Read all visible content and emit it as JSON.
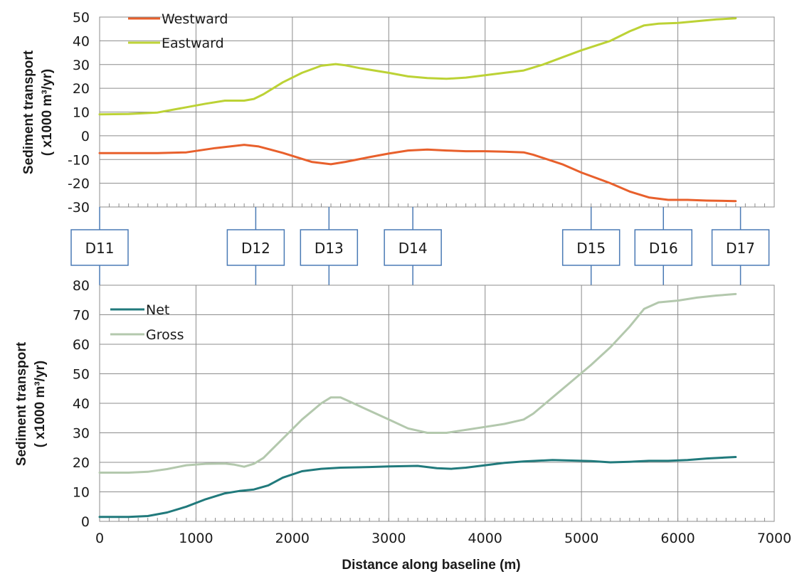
{
  "chart_data": [
    {
      "type": "line",
      "ylabel_lines": [
        "Sediment transport",
        "( x1000  m³/yr)"
      ],
      "xlim": [
        0,
        7000
      ],
      "ylim": [
        -30,
        50
      ],
      "yticks": [
        -30,
        -20,
        -10,
        0,
        10,
        20,
        30,
        40,
        50
      ],
      "xticks": [
        0,
        1000,
        2000,
        3000,
        4000,
        5000,
        6000,
        7000
      ],
      "grid": true,
      "legend": "top-left",
      "series": [
        {
          "name": "Westward",
          "color": "#e8602c",
          "points": [
            [
              0,
              -7.3
            ],
            [
              300,
              -7.3
            ],
            [
              600,
              -7.3
            ],
            [
              900,
              -7
            ],
            [
              1200,
              -5.2
            ],
            [
              1500,
              -3.8
            ],
            [
              1650,
              -4.5
            ],
            [
              1900,
              -7.2
            ],
            [
              2200,
              -11
            ],
            [
              2400,
              -12
            ],
            [
              2550,
              -11
            ],
            [
              2800,
              -9
            ],
            [
              3000,
              -7.5
            ],
            [
              3200,
              -6.2
            ],
            [
              3400,
              -5.8
            ],
            [
              3600,
              -6.2
            ],
            [
              3800,
              -6.5
            ],
            [
              4000,
              -6.5
            ],
            [
              4200,
              -6.7
            ],
            [
              4400,
              -7
            ],
            [
              4500,
              -8
            ],
            [
              4800,
              -12
            ],
            [
              5000,
              -15.5
            ],
            [
              5300,
              -20
            ],
            [
              5500,
              -23.5
            ],
            [
              5700,
              -26
            ],
            [
              5900,
              -27
            ],
            [
              6100,
              -27
            ],
            [
              6300,
              -27.3
            ],
            [
              6600,
              -27.5
            ]
          ]
        },
        {
          "name": "Eastward",
          "color": "#bcd235",
          "points": [
            [
              0,
              9
            ],
            [
              300,
              9.2
            ],
            [
              600,
              9.8
            ],
            [
              900,
              12
            ],
            [
              1100,
              13.5
            ],
            [
              1300,
              14.8
            ],
            [
              1500,
              14.8
            ],
            [
              1600,
              15.5
            ],
            [
              1700,
              17.5
            ],
            [
              1900,
              22.5
            ],
            [
              2100,
              26.5
            ],
            [
              2300,
              29.5
            ],
            [
              2450,
              30.2
            ],
            [
              2550,
              29.7
            ],
            [
              2700,
              28.5
            ],
            [
              3000,
              26.5
            ],
            [
              3200,
              25
            ],
            [
              3400,
              24.3
            ],
            [
              3600,
              24
            ],
            [
              3800,
              24.5
            ],
            [
              4000,
              25.5
            ],
            [
              4200,
              26.5
            ],
            [
              4400,
              27.5
            ],
            [
              4600,
              30
            ],
            [
              4800,
              33
            ],
            [
              5000,
              36
            ],
            [
              5300,
              40
            ],
            [
              5500,
              44
            ],
            [
              5650,
              46.5
            ],
            [
              5800,
              47.2
            ],
            [
              6000,
              47.5
            ],
            [
              6200,
              48.3
            ],
            [
              6400,
              49
            ],
            [
              6600,
              49.5
            ]
          ]
        }
      ]
    },
    {
      "type": "line",
      "ylabel_lines": [
        "Sediment transport",
        "( x1000  m³/yr)"
      ],
      "xlabel": "Distance along baseline (m)",
      "xlim": [
        0,
        7000
      ],
      "ylim": [
        0,
        80
      ],
      "yticks": [
        0,
        10,
        20,
        30,
        40,
        50,
        60,
        70,
        80
      ],
      "xticks": [
        0,
        1000,
        2000,
        3000,
        4000,
        5000,
        6000,
        7000
      ],
      "xtick_labels": [
        "0",
        "1000",
        "2000",
        "3000",
        "4000",
        "5000",
        "6000",
        "7000"
      ],
      "grid": true,
      "legend": "top-left",
      "series": [
        {
          "name": "Net",
          "color": "#217a7c",
          "points": [
            [
              0,
              1.5
            ],
            [
              300,
              1.5
            ],
            [
              500,
              1.8
            ],
            [
              700,
              3
            ],
            [
              900,
              5
            ],
            [
              1100,
              7.5
            ],
            [
              1300,
              9.5
            ],
            [
              1450,
              10.3
            ],
            [
              1600,
              10.8
            ],
            [
              1750,
              12.2
            ],
            [
              1900,
              14.8
            ],
            [
              2100,
              17
            ],
            [
              2300,
              17.8
            ],
            [
              2500,
              18.2
            ],
            [
              2800,
              18.4
            ],
            [
              3000,
              18.6
            ],
            [
              3300,
              18.8
            ],
            [
              3500,
              18
            ],
            [
              3650,
              17.8
            ],
            [
              3800,
              18.2
            ],
            [
              4000,
              19
            ],
            [
              4200,
              19.8
            ],
            [
              4400,
              20.3
            ],
            [
              4700,
              20.8
            ],
            [
              4900,
              20.6
            ],
            [
              5100,
              20.4
            ],
            [
              5300,
              20
            ],
            [
              5500,
              20.2
            ],
            [
              5700,
              20.5
            ],
            [
              5900,
              20.5
            ],
            [
              6100,
              20.8
            ],
            [
              6300,
              21.3
            ],
            [
              6600,
              21.8
            ]
          ]
        },
        {
          "name": "Gross",
          "color": "#b3c8ad",
          "points": [
            [
              0,
              16.5
            ],
            [
              300,
              16.5
            ],
            [
              500,
              16.8
            ],
            [
              700,
              17.7
            ],
            [
              900,
              19
            ],
            [
              1100,
              19.5
            ],
            [
              1300,
              19.6
            ],
            [
              1400,
              19.2
            ],
            [
              1500,
              18.5
            ],
            [
              1600,
              19.5
            ],
            [
              1700,
              21.5
            ],
            [
              1900,
              28
            ],
            [
              2100,
              34.5
            ],
            [
              2300,
              40
            ],
            [
              2400,
              42
            ],
            [
              2500,
              42
            ],
            [
              2600,
              40.5
            ],
            [
              2800,
              37.5
            ],
            [
              3000,
              34.5
            ],
            [
              3200,
              31.5
            ],
            [
              3400,
              30
            ],
            [
              3600,
              30
            ],
            [
              3800,
              31
            ],
            [
              4000,
              32
            ],
            [
              4200,
              33
            ],
            [
              4400,
              34.5
            ],
            [
              4500,
              36.5
            ],
            [
              4700,
              42
            ],
            [
              4900,
              47.5
            ],
            [
              5100,
              53
            ],
            [
              5300,
              59
            ],
            [
              5500,
              66
            ],
            [
              5650,
              72
            ],
            [
              5800,
              74.2
            ],
            [
              6000,
              74.8
            ],
            [
              6200,
              75.8
            ],
            [
              6400,
              76.5
            ],
            [
              6600,
              77
            ]
          ]
        }
      ]
    }
  ],
  "markers": [
    {
      "label": "D11",
      "x": 0
    },
    {
      "label": "D12",
      "x": 1620
    },
    {
      "label": "D13",
      "x": 2380
    },
    {
      "label": "D14",
      "x": 3250
    },
    {
      "label": "D15",
      "x": 5100
    },
    {
      "label": "D16",
      "x": 5850
    },
    {
      "label": "D17",
      "x": 6650
    }
  ]
}
